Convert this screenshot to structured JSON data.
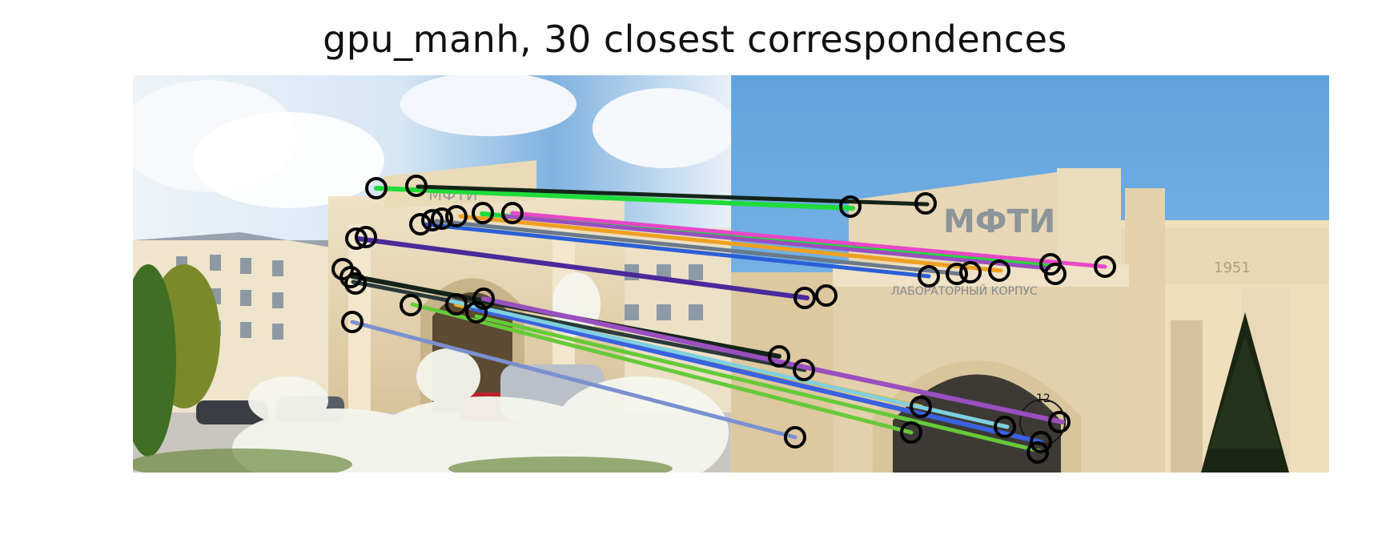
{
  "figure": {
    "title": "gpu_manh, 30 closest correspondences"
  },
  "left_image": {
    "scene": "university building with MФТИ lettering, cloudy sky, parked cars, flowering shrubs in foreground",
    "sign_text": "МФТИ"
  },
  "right_image": {
    "scene": "close-up of arched portal of the same building with clear blue sky and a small fir tree",
    "sign_text": "МФТИ",
    "year_text": "1951",
    "plaque_text": "ЛАБОРАТОРНЫЙ КОРПУС",
    "clock_label": "12"
  },
  "correspondences": {
    "count": 30,
    "colors": [
      "#1fdc3a",
      "#14241a",
      "#9a4fbf",
      "#e847c8",
      "#f0a020",
      "#2a5fd8",
      "#4a2a9a",
      "#2a3a3a",
      "#f0b020",
      "#3a62e0",
      "#8a5ab0",
      "#66c93a",
      "#7fd0e0",
      "#7a90d0"
    ]
  }
}
